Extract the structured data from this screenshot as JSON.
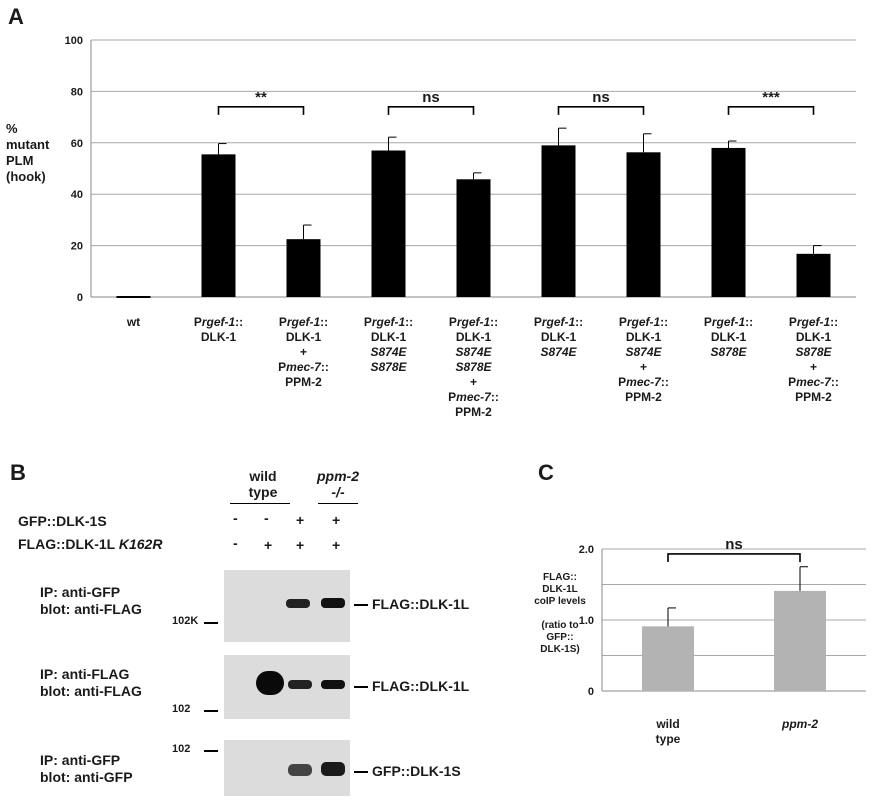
{
  "panels": {
    "a": "A",
    "b": "B",
    "c": "C"
  },
  "chart_data": [
    {
      "type": "bar",
      "panel": "A",
      "ylabel_lines": [
        "%",
        "mutant",
        "PLM",
        "(hook)"
      ],
      "ylim": [
        0,
        100
      ],
      "yticks": [
        0,
        20,
        40,
        60,
        80,
        100
      ],
      "grid": true,
      "bar_color": "#000000",
      "categories": [
        [
          {
            "t": "wt",
            "i": false
          }
        ],
        [
          {
            "t": "P",
            "i": false
          },
          {
            "t": "rgef-1",
            "i": true
          },
          {
            "t": "::",
            "i": false
          },
          {
            "br": 1
          },
          {
            "t": "DLK-1",
            "i": false
          }
        ],
        [
          {
            "t": "P",
            "i": false
          },
          {
            "t": "rgef-1",
            "i": true
          },
          {
            "t": "::",
            "i": false
          },
          {
            "br": 1
          },
          {
            "t": "DLK-1",
            "i": false
          },
          {
            "br": 1
          },
          {
            "t": "+",
            "i": false
          },
          {
            "br": 1
          },
          {
            "t": "P",
            "i": false
          },
          {
            "t": "mec-7",
            "i": true
          },
          {
            "t": "::",
            "i": false
          },
          {
            "br": 1
          },
          {
            "t": "PPM-2",
            "i": false
          }
        ],
        [
          {
            "t": "P",
            "i": false
          },
          {
            "t": "rgef-1",
            "i": true
          },
          {
            "t": "::",
            "i": false
          },
          {
            "br": 1
          },
          {
            "t": "DLK-1",
            "i": false
          },
          {
            "br": 1
          },
          {
            "t": "S874E",
            "i": true
          },
          {
            "br": 1
          },
          {
            "t": "S878E",
            "i": true
          }
        ],
        [
          {
            "t": "P",
            "i": false
          },
          {
            "t": "rgef-1",
            "i": true
          },
          {
            "t": "::",
            "i": false
          },
          {
            "br": 1
          },
          {
            "t": "DLK-1",
            "i": false
          },
          {
            "br": 1
          },
          {
            "t": "S874E",
            "i": true
          },
          {
            "br": 1
          },
          {
            "t": "S878E",
            "i": true
          },
          {
            "br": 1
          },
          {
            "t": "+",
            "i": false
          },
          {
            "br": 1
          },
          {
            "t": "P",
            "i": false
          },
          {
            "t": "mec-7",
            "i": true
          },
          {
            "t": "::",
            "i": false
          },
          {
            "br": 1
          },
          {
            "t": "PPM-2",
            "i": false
          }
        ],
        [
          {
            "t": "P",
            "i": false
          },
          {
            "t": "rgef-1",
            "i": true
          },
          {
            "t": "::",
            "i": false
          },
          {
            "br": 1
          },
          {
            "t": "DLK-1",
            "i": false
          },
          {
            "br": 1
          },
          {
            "t": "S874E",
            "i": true
          }
        ],
        [
          {
            "t": "P",
            "i": false
          },
          {
            "t": "rgef-1",
            "i": true
          },
          {
            "t": "::",
            "i": false
          },
          {
            "br": 1
          },
          {
            "t": "DLK-1",
            "i": false
          },
          {
            "br": 1
          },
          {
            "t": "S874E",
            "i": true
          },
          {
            "br": 1
          },
          {
            "t": "+",
            "i": false
          },
          {
            "br": 1
          },
          {
            "t": "P",
            "i": false
          },
          {
            "t": "mec-7",
            "i": true
          },
          {
            "t": "::",
            "i": false
          },
          {
            "br": 1
          },
          {
            "t": "PPM-2",
            "i": false
          }
        ],
        [
          {
            "t": "P",
            "i": false
          },
          {
            "t": "rgef-1",
            "i": true
          },
          {
            "t": "::",
            "i": false
          },
          {
            "br": 1
          },
          {
            "t": "DLK-1",
            "i": false
          },
          {
            "br": 1
          },
          {
            "t": "S878E",
            "i": true
          }
        ],
        [
          {
            "t": "P",
            "i": false
          },
          {
            "t": "rgef-1",
            "i": true
          },
          {
            "t": "::",
            "i": false
          },
          {
            "br": 1
          },
          {
            "t": "DLK-1",
            "i": false
          },
          {
            "br": 1
          },
          {
            "t": "S878E",
            "i": true
          },
          {
            "br": 1
          },
          {
            "t": "+",
            "i": false
          },
          {
            "br": 1
          },
          {
            "t": "P",
            "i": false
          },
          {
            "t": "mec-7",
            "i": true
          },
          {
            "t": "::",
            "i": false
          },
          {
            "br": 1
          },
          {
            "t": "PPM-2",
            "i": false
          }
        ]
      ],
      "values": [
        0,
        55.5,
        22.5,
        57,
        45.8,
        59,
        56.3,
        58,
        16.8
      ],
      "errors": [
        0,
        4.2,
        5.5,
        5.2,
        2.5,
        6.7,
        7.2,
        2.7,
        3.2
      ],
      "annotations": [
        {
          "from": 1,
          "to": 2,
          "y": 74,
          "label": "**"
        },
        {
          "from": 3,
          "to": 4,
          "y": 74,
          "label": "ns"
        },
        {
          "from": 5,
          "to": 6,
          "y": 74,
          "label": "ns"
        },
        {
          "from": 7,
          "to": 8,
          "y": 74,
          "label": "***"
        }
      ]
    },
    {
      "type": "bar",
      "panel": "C",
      "ylabel_lines": [
        "FLAG::",
        "DLK-1L",
        "coIP levels",
        "",
        "(ratio to",
        "GFP::",
        "DLK-1S)"
      ],
      "ylim": [
        0,
        2.0
      ],
      "yticks": [
        0,
        0.5,
        1.0,
        1.5,
        2.0
      ],
      "ytick_labels": [
        "0",
        "",
        "1.0",
        "",
        "2.0"
      ],
      "grid": true,
      "bar_color": "#b3b3b3",
      "categories": [
        [
          {
            "t": "wild",
            "i": false
          },
          {
            "br": 1
          },
          {
            "t": "type",
            "i": false
          }
        ],
        [
          {
            "t": "ppm-2",
            "i": true
          }
        ]
      ],
      "values": [
        0.91,
        1.41
      ],
      "errors": [
        0.26,
        0.34
      ],
      "annotations": [
        {
          "from": 0,
          "to": 1,
          "y": 1.93,
          "label": "ns"
        }
      ]
    }
  ],
  "panel_b": {
    "header_wt": [
      "wild",
      "type"
    ],
    "header_mut": [
      "ppm-2",
      "-/-"
    ],
    "row_gfp": "GFP::DLK-1S",
    "row_flag_a": "FLAG::DLK-1L ",
    "row_flag_b": "K162R",
    "signs_gfp": [
      "-",
      "-",
      "+",
      "+"
    ],
    "signs_flag": [
      "-",
      "+",
      "+",
      "+"
    ],
    "blot1_label": [
      "IP: anti-GFP",
      "blot: anti-FLAG"
    ],
    "blot2_label": [
      "IP: anti-FLAG",
      "blot: anti-FLAG"
    ],
    "blot3_label": [
      "IP: anti-GFP",
      "blot: anti-GFP"
    ],
    "marker1": "102K",
    "marker2": "102",
    "marker3": "102",
    "band1": "FLAG::DLK-1L",
    "band2": "FLAG::DLK-1L",
    "band3": "GFP::DLK-1S"
  }
}
